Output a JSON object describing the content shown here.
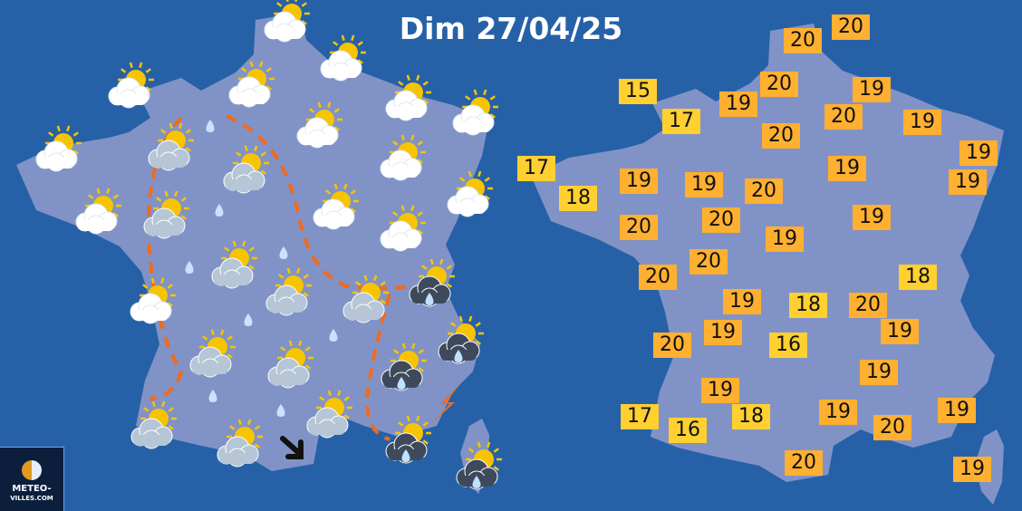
{
  "title": "Dim 27/04/25",
  "colors": {
    "background": "#2661a8",
    "land": "#8193c6",
    "temp_warm": "#ffb030",
    "temp_mild": "#ffd030",
    "route_line": "#f26a1b"
  },
  "logo": {
    "line1": "METEO-",
    "line2": "VILLES.COM"
  },
  "forecast_icons": [
    "sun-cloud",
    "sun-cloud",
    "sun-cloud",
    "sun-cloud",
    "sun-cloud",
    "sun-cloud",
    "sun-cloud",
    "sun-cloud",
    "sun-cloud",
    "sun-cloud",
    "sun-cloud",
    "sun-cloud",
    "sun-cloud",
    "sun-cloud",
    "sun-grey-cloud",
    "sun-grey-cloud",
    "sun-grey-cloud",
    "sun-grey-cloud",
    "sun-grey-cloud",
    "sun-grey-cloud",
    "sun-grey-cloud",
    "sun-grey-cloud",
    "sun-grey-cloud",
    "sun-grey-cloud",
    "sun-grey-cloud",
    "sun-rain-cloud",
    "sun-rain-cloud",
    "sun-rain-cloud",
    "sun-rain-cloud",
    "sun-rain-cloud"
  ],
  "rain_drops": 8,
  "extras": [
    "lightning",
    "wind-arrow"
  ],
  "temperatures": [
    {
      "value": "20",
      "level": "warm"
    },
    {
      "value": "20",
      "level": "warm"
    },
    {
      "value": "15",
      "level": "mild"
    },
    {
      "value": "17",
      "level": "mild"
    },
    {
      "value": "19",
      "level": "warm"
    },
    {
      "value": "20",
      "level": "warm"
    },
    {
      "value": "19",
      "level": "warm"
    },
    {
      "value": "20",
      "level": "warm"
    },
    {
      "value": "20",
      "level": "warm"
    },
    {
      "value": "19",
      "level": "warm"
    },
    {
      "value": "19",
      "level": "warm"
    },
    {
      "value": "17",
      "level": "mild"
    },
    {
      "value": "19",
      "level": "warm"
    },
    {
      "value": "19",
      "level": "warm"
    },
    {
      "value": "19",
      "level": "warm"
    },
    {
      "value": "20",
      "level": "warm"
    },
    {
      "value": "19",
      "level": "warm"
    },
    {
      "value": "18",
      "level": "mild"
    },
    {
      "value": "20",
      "level": "warm"
    },
    {
      "value": "19",
      "level": "warm"
    },
    {
      "value": "20",
      "level": "warm"
    },
    {
      "value": "19",
      "level": "warm"
    },
    {
      "value": "20",
      "level": "warm"
    },
    {
      "value": "20",
      "level": "warm"
    },
    {
      "value": "18",
      "level": "mild"
    },
    {
      "value": "19",
      "level": "warm"
    },
    {
      "value": "18",
      "level": "mild"
    },
    {
      "value": "20",
      "level": "warm"
    },
    {
      "value": "19",
      "level": "warm"
    },
    {
      "value": "19",
      "level": "warm"
    },
    {
      "value": "20",
      "level": "warm"
    },
    {
      "value": "16",
      "level": "mild"
    },
    {
      "value": "19",
      "level": "warm"
    },
    {
      "value": "19",
      "level": "warm"
    },
    {
      "value": "19",
      "level": "warm"
    },
    {
      "value": "19",
      "level": "warm"
    },
    {
      "value": "17",
      "level": "mild"
    },
    {
      "value": "18",
      "level": "mild"
    },
    {
      "value": "20",
      "level": "warm"
    },
    {
      "value": "16",
      "level": "mild"
    },
    {
      "value": "20",
      "level": "warm"
    },
    {
      "value": "19",
      "level": "warm"
    }
  ]
}
